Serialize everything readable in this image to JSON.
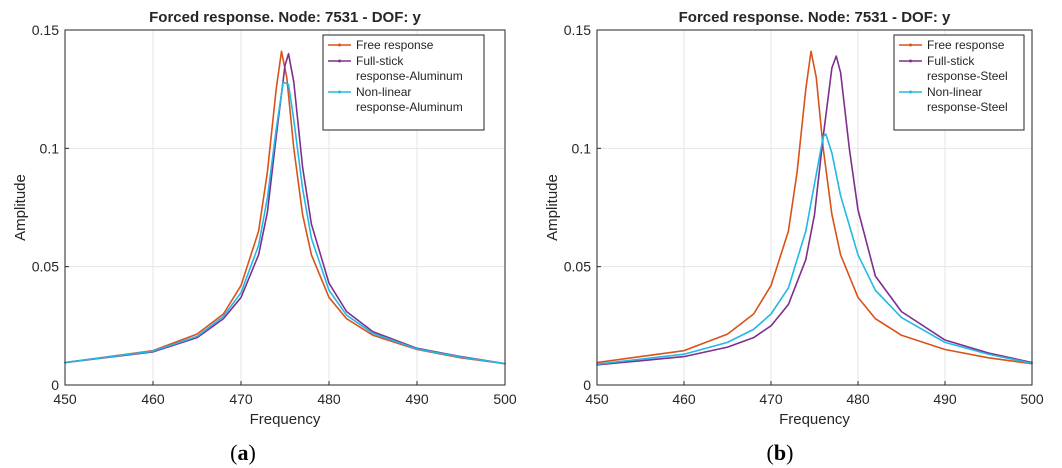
{
  "chart_data": [
    {
      "type": "line",
      "panel_label": "a",
      "title": "Forced response. Node: 7531 - DOF: y",
      "xlabel": "Frequency",
      "ylabel": "Amplitude",
      "xlim": [
        450,
        500
      ],
      "ylim": [
        0,
        0.15
      ],
      "xticks": [
        "450",
        "460",
        "470",
        "480",
        "490",
        "500"
      ],
      "yticks": [
        "0",
        "0.05",
        "0.1",
        "0.15"
      ],
      "grid": true,
      "legend_position": "top-right",
      "series": [
        {
          "name": "Free response",
          "color": "#d95319",
          "x": [
            450,
            460,
            465,
            468,
            470,
            472,
            473,
            474,
            474.6,
            475.2,
            476,
            477,
            478,
            480,
            482,
            485,
            490,
            495,
            500
          ],
          "y": [
            0.0095,
            0.0145,
            0.0215,
            0.03,
            0.042,
            0.065,
            0.09,
            0.125,
            0.141,
            0.13,
            0.1,
            0.072,
            0.055,
            0.037,
            0.028,
            0.021,
            0.015,
            0.0115,
            0.009
          ]
        },
        {
          "name": "Full-stick\nresponse-Aluminum",
          "color": "#7e2f8e",
          "x": [
            450,
            460,
            465,
            468,
            470,
            472,
            473,
            474,
            475,
            475.4,
            476,
            477,
            478,
            480,
            482,
            485,
            490,
            495,
            500
          ],
          "y": [
            0.0095,
            0.014,
            0.02,
            0.028,
            0.037,
            0.055,
            0.073,
            0.105,
            0.135,
            0.14,
            0.128,
            0.092,
            0.068,
            0.043,
            0.031,
            0.0225,
            0.0155,
            0.012,
            0.009
          ]
        },
        {
          "name": "Non-linear\nresponse-Aluminum",
          "color": "#22b8e6",
          "x": [
            450,
            460,
            465,
            468,
            470,
            472,
            473,
            474,
            474.8,
            475.4,
            476,
            477,
            478,
            480,
            482,
            485,
            490,
            495,
            500
          ],
          "y": [
            0.0095,
            0.0143,
            0.0205,
            0.029,
            0.039,
            0.059,
            0.079,
            0.108,
            0.128,
            0.127,
            0.112,
            0.083,
            0.062,
            0.04,
            0.0295,
            0.0218,
            0.0152,
            0.0118,
            0.009
          ]
        }
      ]
    },
    {
      "type": "line",
      "panel_label": "b",
      "title": "Forced response. Node: 7531 - DOF: y",
      "xlabel": "Frequency",
      "ylabel": "Amplitude",
      "xlim": [
        450,
        500
      ],
      "ylim": [
        0,
        0.15
      ],
      "xticks": [
        "450",
        "460",
        "470",
        "480",
        "490",
        "500"
      ],
      "yticks": [
        "0",
        "0.05",
        "0.1",
        "0.15"
      ],
      "grid": true,
      "legend_position": "top-right",
      "series": [
        {
          "name": "Free response",
          "color": "#d95319",
          "x": [
            450,
            460,
            465,
            468,
            470,
            472,
            473,
            474,
            474.6,
            475.2,
            476,
            477,
            478,
            480,
            482,
            485,
            490,
            495,
            500
          ],
          "y": [
            0.0095,
            0.0145,
            0.0215,
            0.03,
            0.042,
            0.065,
            0.09,
            0.125,
            0.141,
            0.13,
            0.1,
            0.072,
            0.055,
            0.037,
            0.028,
            0.021,
            0.015,
            0.0115,
            0.009
          ]
        },
        {
          "name": "Full-stick\nresponse-Steel",
          "color": "#7e2f8e",
          "x": [
            450,
            460,
            465,
            468,
            470,
            472,
            474,
            475,
            476,
            477,
            477.5,
            478,
            479,
            480,
            482,
            485,
            490,
            495,
            500
          ],
          "y": [
            0.0085,
            0.012,
            0.016,
            0.02,
            0.025,
            0.034,
            0.053,
            0.072,
            0.105,
            0.134,
            0.139,
            0.132,
            0.1,
            0.074,
            0.046,
            0.031,
            0.019,
            0.0135,
            0.0095
          ]
        },
        {
          "name": "Non-linear\nresponse-Steel",
          "color": "#22b8e6",
          "x": [
            450,
            460,
            465,
            468,
            470,
            472,
            474,
            475,
            476,
            476.3,
            477,
            478,
            480,
            482,
            485,
            490,
            495,
            500
          ],
          "y": [
            0.0088,
            0.013,
            0.018,
            0.0235,
            0.03,
            0.041,
            0.065,
            0.085,
            0.105,
            0.106,
            0.098,
            0.08,
            0.055,
            0.04,
            0.0285,
            0.018,
            0.013,
            0.0092
          ]
        }
      ]
    }
  ]
}
